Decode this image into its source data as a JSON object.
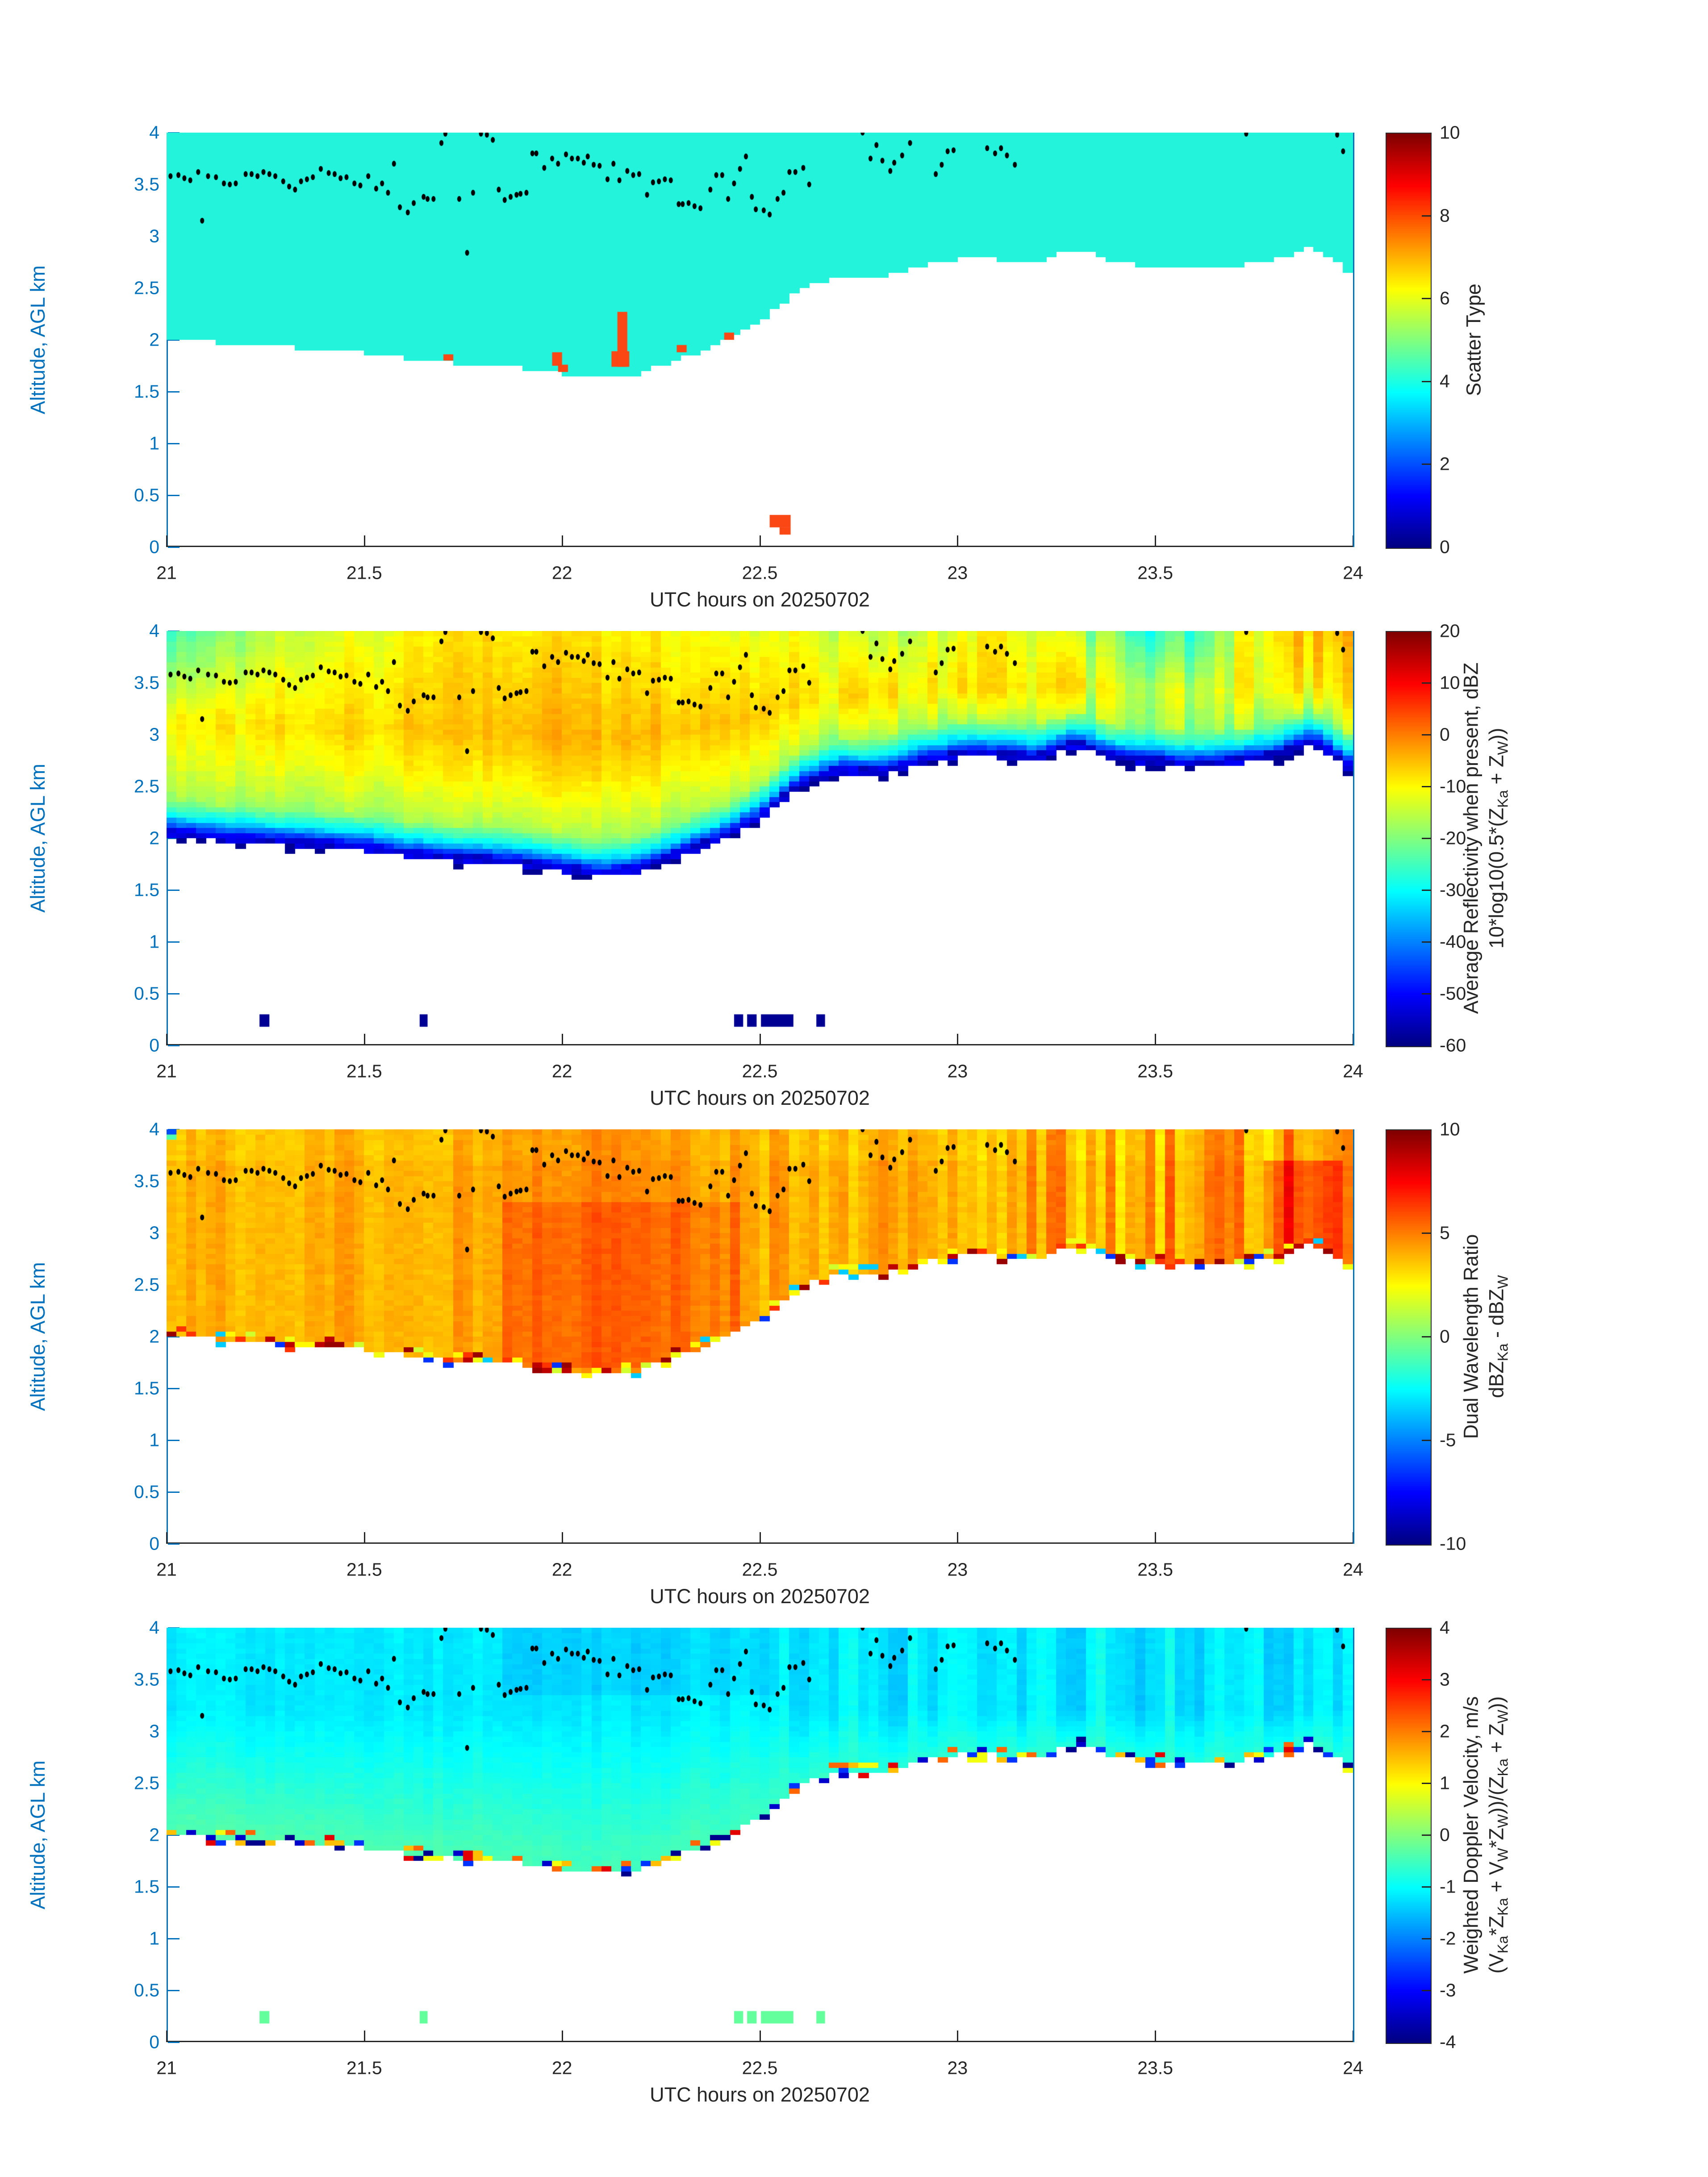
{
  "figure": {
    "xlabel": "UTC hours on 20250702",
    "ylabel": "Altitude, AGL km",
    "xlim": [
      21,
      24
    ],
    "ylim": [
      0,
      4
    ],
    "x_tick_values": [
      21,
      21.5,
      22,
      22.5,
      23,
      23.5,
      24
    ],
    "x_tick_labels": [
      "21",
      "21.5",
      "22",
      "22.5",
      "23",
      "23.5",
      "24"
    ],
    "y_tick_values": [
      0,
      0.5,
      1,
      1.5,
      2,
      2.5,
      3,
      3.5,
      4
    ],
    "y_tick_labels": [
      "0",
      "0.5",
      "1",
      "1.5",
      "2",
      "2.5",
      "3",
      "3.5",
      "4"
    ],
    "colors": {
      "axis_blue": "#0072BD",
      "axis_dark": "#262626",
      "background": "#ffffff",
      "dot": "#000000"
    }
  },
  "shared": {
    "time_grid": [
      21.0,
      21.1,
      21.2,
      21.3,
      21.4,
      21.5,
      21.6,
      21.7,
      21.8,
      21.9,
      22.0,
      22.1,
      22.2,
      22.3,
      22.4,
      22.5,
      22.6,
      22.7,
      22.8,
      22.9,
      23.0,
      23.1,
      23.2,
      23.3,
      23.4,
      23.5,
      23.6,
      23.7,
      23.8,
      23.9,
      24.0
    ],
    "cloud_base_km": [
      2.05,
      2.0,
      1.98,
      1.95,
      1.93,
      1.9,
      1.84,
      1.8,
      1.78,
      1.75,
      1.7,
      1.64,
      1.7,
      1.84,
      1.98,
      2.18,
      2.5,
      2.64,
      2.62,
      2.72,
      2.8,
      2.8,
      2.76,
      2.9,
      2.76,
      2.73,
      2.7,
      2.73,
      2.78,
      2.92,
      2.66
    ],
    "cloud_top_km": 4.0,
    "surface_specks_t": [
      [
        21.235,
        21.26
      ],
      [
        21.64,
        21.66
      ],
      [
        22.435,
        22.458
      ],
      [
        22.468,
        22.492
      ],
      [
        22.503,
        22.585
      ],
      [
        22.643,
        22.665
      ]
    ],
    "surface_specks_alt": [
      0.18,
      0.3
    ],
    "dot_track": {
      "t": [
        21.01,
        21.03,
        21.045,
        21.06,
        21.08,
        21.09,
        21.105,
        21.125,
        21.145,
        21.16,
        21.175,
        21.2,
        21.215,
        21.23,
        21.245,
        21.26,
        21.275,
        21.295,
        21.31,
        21.325,
        21.34,
        21.355,
        21.37,
        21.39,
        21.41,
        21.425,
        21.44,
        21.455,
        21.475,
        21.49,
        21.51,
        21.53,
        21.545,
        21.56,
        21.575,
        21.59,
        21.61,
        21.625,
        21.65,
        21.66,
        21.675,
        21.695,
        21.705,
        21.74,
        21.76,
        21.775,
        21.795,
        21.81,
        21.825,
        21.84,
        21.855,
        21.87,
        21.885,
        21.895,
        21.91,
        21.925,
        21.935,
        21.955,
        21.975,
        21.99,
        22.01,
        22.025,
        22.04,
        22.055,
        22.065,
        22.08,
        22.095,
        22.115,
        22.13,
        22.145,
        22.165,
        22.18,
        22.195,
        22.215,
        22.23,
        22.245,
        22.26,
        22.275,
        22.295,
        22.305,
        22.32,
        22.335,
        22.35,
        22.375,
        22.39,
        22.405,
        22.42,
        22.435,
        22.45,
        22.465,
        22.48,
        22.49,
        22.51,
        22.525,
        22.545,
        22.56,
        22.575,
        22.59,
        22.61,
        22.625,
        22.76,
        22.78,
        22.795,
        22.81,
        22.83,
        22.84,
        22.86,
        22.88,
        22.945,
        22.96,
        22.975,
        22.99,
        23.075,
        23.095,
        23.11,
        23.125,
        23.145,
        23.73,
        23.96,
        23.975
      ],
      "alt": [
        3.58,
        3.59,
        3.56,
        3.54,
        3.62,
        3.15,
        3.58,
        3.57,
        3.51,
        3.5,
        3.51,
        3.6,
        3.6,
        3.58,
        3.62,
        3.6,
        3.58,
        3.53,
        3.48,
        3.45,
        3.53,
        3.55,
        3.57,
        3.65,
        3.61,
        3.6,
        3.56,
        3.57,
        3.51,
        3.49,
        3.58,
        3.46,
        3.51,
        3.42,
        3.7,
        3.28,
        3.23,
        3.32,
        3.38,
        3.36,
        3.36,
        3.9,
        3.99,
        3.36,
        2.84,
        3.42,
        3.99,
        3.98,
        3.93,
        3.45,
        3.35,
        3.38,
        3.4,
        3.41,
        3.42,
        3.8,
        3.8,
        3.66,
        3.75,
        3.7,
        3.79,
        3.75,
        3.75,
        3.71,
        3.77,
        3.69,
        3.68,
        3.55,
        3.7,
        3.54,
        3.63,
        3.59,
        3.6,
        3.4,
        3.52,
        3.53,
        3.55,
        3.54,
        3.31,
        3.31,
        3.32,
        3.29,
        3.27,
        3.45,
        3.59,
        3.59,
        3.36,
        3.51,
        3.65,
        3.77,
        3.38,
        3.26,
        3.25,
        3.21,
        3.36,
        3.42,
        3.62,
        3.62,
        3.66,
        3.5,
        4.0,
        3.75,
        3.88,
        3.73,
        3.63,
        3.71,
        3.78,
        3.9,
        3.6,
        3.69,
        3.82,
        3.83,
        3.85,
        3.8,
        3.85,
        3.78,
        3.69,
        3.99,
        3.98,
        3.82
      ]
    }
  },
  "chart_data": [
    {
      "type": "heatmap",
      "name": "scatter-type",
      "colorbar": {
        "range": [
          0,
          10
        ],
        "tick_values": [
          10,
          8,
          6,
          4,
          2,
          0
        ],
        "tick_labels": [
          "10",
          "8",
          "6",
          "4",
          "2",
          "0"
        ],
        "label_lines": [
          [
            {
              "t": "Scatter Type"
            }
          ]
        ]
      },
      "field": {
        "mode": "uniform",
        "fill_value_est": 4.1,
        "fill_color": "#22f3da",
        "anomaly_value_est": 8,
        "anomaly_color": "#fa4714",
        "anomalies": [
          [
            21.7,
            21.725,
            1.8,
            1.86
          ],
          [
            21.975,
            22.0,
            1.75,
            1.88
          ],
          [
            21.99,
            22.015,
            1.69,
            1.76
          ],
          [
            22.125,
            22.17,
            1.74,
            1.89
          ],
          [
            22.14,
            22.165,
            1.74,
            2.27
          ],
          [
            22.29,
            22.315,
            1.88,
            1.95
          ],
          [
            22.41,
            22.435,
            2.0,
            2.07
          ]
        ],
        "surface_blob": [
          [
            22.525,
            22.578,
            0.19,
            0.31
          ],
          [
            22.55,
            22.578,
            0.12,
            0.19
          ]
        ]
      }
    },
    {
      "type": "heatmap",
      "name": "average-reflectivity",
      "colorbar": {
        "range": [
          -60,
          20
        ],
        "tick_values": [
          20,
          10,
          0,
          -10,
          -20,
          -30,
          -40,
          -50,
          -60
        ],
        "tick_labels": [
          "20",
          "10",
          "0",
          "-10",
          "-20",
          "-30",
          "-40",
          "-50",
          "-60"
        ],
        "label_lines": [
          [
            {
              "t": "Average Reflectivity when present, dBZ"
            }
          ],
          [
            {
              "t": "10*log10(0.5*(Z"
            },
            {
              "s": "Ka"
            },
            {
              "t": " + Z"
            },
            {
              "s": "W"
            },
            {
              "t": "))"
            }
          ]
        ]
      },
      "field": {
        "mode": "reflectivity",
        "base_dbz": -54,
        "mid_dbz": [
          -10,
          -9,
          -8,
          -7,
          -7,
          -7,
          -6,
          -6,
          -6,
          -5,
          -4,
          -4,
          -4,
          -5,
          -6,
          -7,
          -8,
          -8,
          -8,
          -9,
          -8,
          -8,
          -9,
          -11,
          -14,
          -15,
          -14,
          -11,
          -9,
          -8,
          -9
        ],
        "top_dbz": [
          -26,
          -22,
          -18,
          -14,
          -13,
          -12,
          -10,
          -9,
          -8,
          -9,
          -8,
          -8,
          -9,
          -10,
          -12,
          -13,
          -12,
          -14,
          -16,
          -14,
          -12,
          -10,
          -13,
          -17,
          -22,
          -27,
          -25,
          -14,
          -7,
          -5,
          -6
        ],
        "col_noise": [
          2,
          2,
          2,
          2,
          2,
          2,
          2,
          2,
          2,
          2,
          2,
          2,
          2,
          2,
          2,
          2,
          2.5,
          3,
          3,
          3,
          3,
          3,
          4,
          5,
          5,
          5,
          5,
          5,
          4,
          4,
          4
        ],
        "speck_value": -58.5
      }
    },
    {
      "type": "heatmap",
      "name": "dual-wavelength-ratio",
      "colorbar": {
        "range": [
          -10,
          10
        ],
        "tick_values": [
          10,
          5,
          0,
          -5,
          -10
        ],
        "tick_labels": [
          "10",
          "5",
          "0",
          "-5",
          "-10"
        ],
        "label_lines": [
          [
            {
              "t": "Dual Wavelength Ratio"
            }
          ],
          [
            {
              "t": "dBZ"
            },
            {
              "s": "Ka"
            },
            {
              "t": " - dBZ"
            },
            {
              "s": "W"
            }
          ]
        ]
      },
      "field": {
        "mode": "dwr",
        "mid": [
          4.0,
          4.0,
          4.0,
          4.0,
          4.0,
          4.1,
          4.1,
          4.2,
          4.2,
          4.4,
          4.6,
          4.7,
          4.7,
          4.6,
          4.4,
          4.2,
          4.1,
          4.0,
          4.0,
          4.0,
          4.0,
          4.1,
          4.1,
          4.1,
          4.1,
          4.1,
          4.2,
          4.2,
          4.4,
          4.4,
          4.3
        ],
        "core": {
          "t": [
            21.85,
            22.45
          ],
          "z": [
            1.7,
            3.3
          ],
          "boost": 0.8
        },
        "core2": {
          "t": [
            23.78,
            23.97
          ],
          "z": [
            2.6,
            3.7
          ],
          "boost": 1.6
        },
        "col_noise": [
          0.5,
          0.5,
          0.5,
          0.5,
          0.5,
          0.5,
          0.5,
          0.5,
          0.5,
          0.5,
          0.5,
          0.5,
          0.5,
          0.5,
          0.6,
          0.7,
          0.8,
          0.8,
          0.8,
          0.9,
          0.9,
          1.0,
          1.1,
          1.4,
          1.6,
          1.6,
          1.6,
          1.7,
          1.7,
          1.6,
          1.5
        ],
        "top_left_cells": [
          [
            21.0,
            21.025,
            3.9,
            3.95,
            -1
          ],
          [
            21.0,
            21.025,
            3.95,
            4.0,
            -6
          ]
        ],
        "rim_values": [
          8.8,
          6.5,
          2.6,
          1.6,
          -3.5,
          -6.5,
          2.2,
          9.5
        ],
        "rim_prob": 0.45
      }
    },
    {
      "type": "heatmap",
      "name": "weighted-doppler-velocity",
      "colorbar": {
        "range": [
          -4,
          4
        ],
        "tick_values": [
          4,
          3,
          2,
          1,
          0,
          -1,
          -2,
          -3,
          -4
        ],
        "tick_labels": [
          "4",
          "3",
          "2",
          "1",
          "0",
          "-1",
          "-2",
          "-3",
          "-4"
        ],
        "label_lines": [
          [
            {
              "t": "Weighted Doppler Velocity, m/s"
            }
          ],
          [
            {
              "t": "(V"
            },
            {
              "s": "Ka"
            },
            {
              "t": "*Z"
            },
            {
              "s": "Ka"
            },
            {
              "t": " + V"
            },
            {
              "s": "W"
            },
            {
              "t": "*Z"
            },
            {
              "s": "W"
            },
            {
              "t": "))/(Z"
            },
            {
              "s": "Ka"
            },
            {
              "t": " + Z"
            },
            {
              "s": "W"
            },
            {
              "t": "))"
            }
          ]
        ]
      },
      "field": {
        "mode": "velocity",
        "base_vel": [
          -0.35,
          -0.35,
          -0.35,
          -0.35,
          -0.4,
          -0.4,
          -0.4,
          -0.4,
          -0.4,
          -0.4,
          -0.45,
          -0.45,
          -0.45,
          -0.45,
          -0.5,
          -0.55,
          -0.6,
          -0.65,
          -0.7,
          -0.7,
          -0.7,
          -0.7,
          -0.7,
          -0.7,
          -0.7,
          -0.7,
          -0.7,
          -0.7,
          -0.7,
          -0.7,
          -0.7
        ],
        "top_vel": -1.15,
        "col_noise": [
          0.1,
          0.1,
          0.1,
          0.1,
          0.1,
          0.1,
          0.1,
          0.12,
          0.12,
          0.12,
          0.12,
          0.12,
          0.15,
          0.15,
          0.15,
          0.15,
          0.2,
          0.25,
          0.3,
          0.3,
          0.3,
          0.3,
          0.3,
          0.35,
          0.35,
          0.35,
          0.35,
          0.35,
          0.3,
          0.3,
          0.3
        ],
        "rim_values": [
          3.2,
          -3.4,
          2.2,
          -2.6,
          0.9,
          -3.9,
          1.5
        ],
        "rim_prob": 0.35,
        "speck_value": -0.22
      }
    }
  ]
}
